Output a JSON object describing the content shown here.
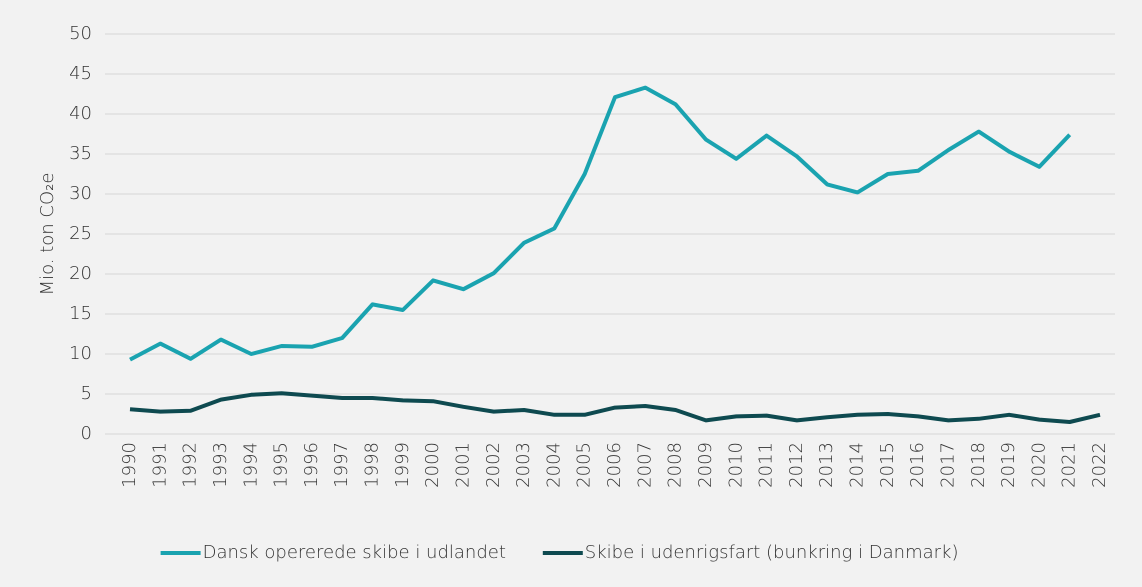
{
  "chart_data": {
    "type": "line",
    "y_label": "Mio. ton CO₂e",
    "categories": [
      "1990",
      "1991",
      "1992",
      "1993",
      "1994",
      "1995",
      "1996",
      "1997",
      "1998",
      "1999",
      "2000",
      "2001",
      "2002",
      "2003",
      "2004",
      "2005",
      "2006",
      "2007",
      "2008",
      "2009",
      "2010",
      "2011",
      "2012",
      "2013",
      "2014",
      "2015",
      "2016",
      "2017",
      "2018",
      "2019",
      "2020",
      "2021",
      "2022"
    ],
    "series": [
      {
        "name": "Dansk opererede skibe i udlandet",
        "color": "#1aa3b0",
        "values": [
          9.3,
          11.3,
          9.4,
          11.8,
          10.0,
          11.0,
          10.9,
          12.0,
          16.2,
          15.5,
          19.2,
          18.1,
          20.1,
          23.9,
          25.7,
          32.5,
          42.1,
          43.3,
          41.2,
          36.8,
          34.4,
          37.3,
          34.7,
          31.2,
          30.2,
          32.5,
          32.9,
          35.5,
          37.8,
          35.3,
          33.4,
          37.4,
          null
        ]
      },
      {
        "name": "Skibe i udenrigsfart (bunkring i Danmark)",
        "color": "#0e4a50",
        "values": [
          3.1,
          2.8,
          2.9,
          4.3,
          4.9,
          5.1,
          4.8,
          4.5,
          4.5,
          4.2,
          4.1,
          3.4,
          2.8,
          3.0,
          2.4,
          2.4,
          3.3,
          3.5,
          3.0,
          1.7,
          2.2,
          2.3,
          1.7,
          2.1,
          2.4,
          2.5,
          2.2,
          1.7,
          1.9,
          2.4,
          1.8,
          1.5,
          2.4
        ]
      }
    ],
    "ylim": [
      0,
      50
    ],
    "yticks": [
      0,
      5,
      10,
      15,
      20,
      25,
      30,
      35,
      40,
      45,
      50
    ],
    "grid": true,
    "legend": "bottom"
  }
}
